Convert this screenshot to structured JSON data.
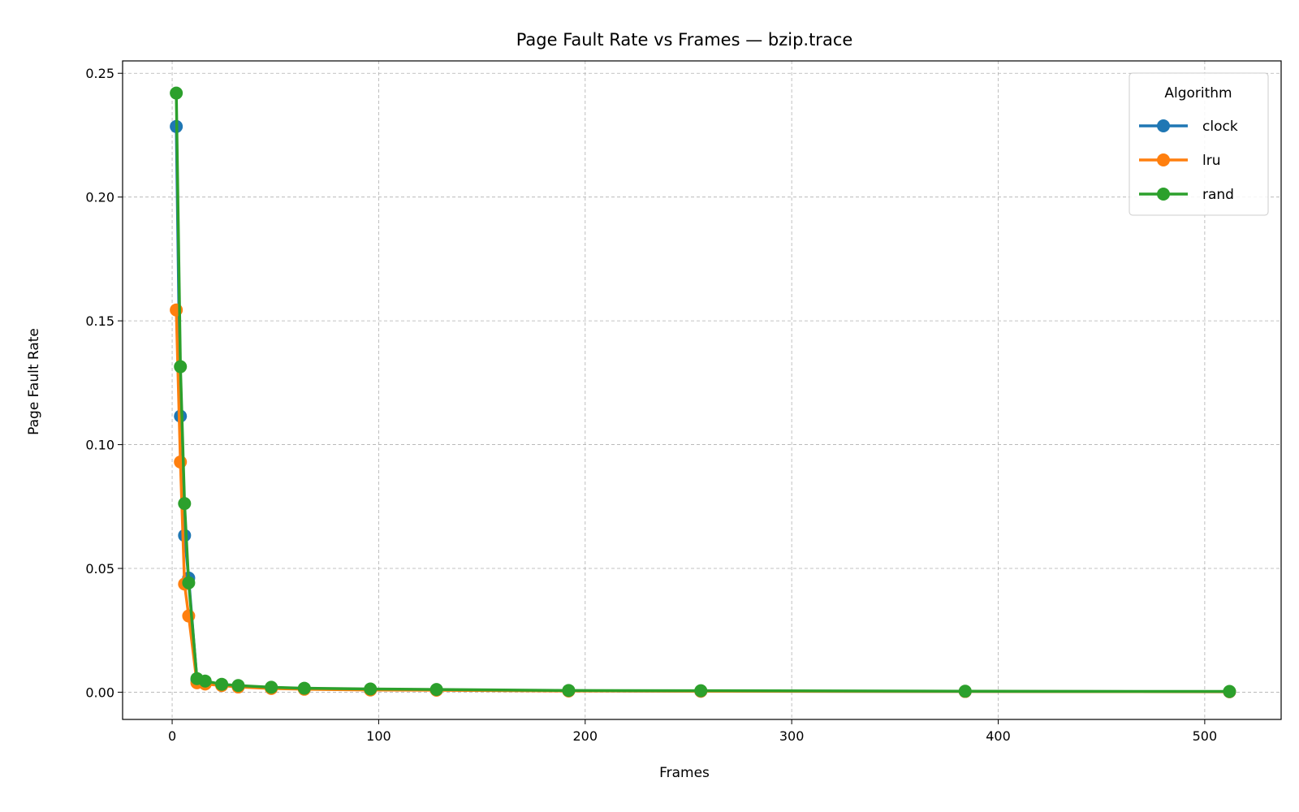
{
  "chart_data": {
    "type": "line",
    "title": "Page Fault Rate vs Frames — bzip.trace",
    "xlabel": "Frames",
    "ylabel": "Page Fault Rate",
    "xlim": [
      -24,
      537
    ],
    "ylim": [
      -0.011,
      0.255
    ],
    "xticks": [
      0,
      100,
      200,
      300,
      400,
      500
    ],
    "yticks": [
      0.0,
      0.05,
      0.1,
      0.15,
      0.2,
      0.25
    ],
    "ytick_labels": [
      "0.00",
      "0.05",
      "0.10",
      "0.15",
      "0.20",
      "0.25"
    ],
    "grid": true,
    "legend_title": "Algorithm",
    "legend_position": "top-right",
    "x": [
      2,
      4,
      6,
      8,
      12,
      16,
      24,
      32,
      48,
      64,
      96,
      128,
      192,
      256,
      384,
      512
    ],
    "series": [
      {
        "name": "clock",
        "color": "#1f77b4",
        "values": [
          0.2285,
          0.1115,
          0.0633,
          0.0461,
          0.0049,
          0.004,
          0.003,
          0.0023,
          0.0017,
          0.0014,
          0.0011,
          0.0009,
          0.0006,
          0.0004,
          0.0003,
          0.0002
        ]
      },
      {
        "name": "lru",
        "color": "#ff7f0e",
        "values": [
          0.1544,
          0.093,
          0.0437,
          0.0308,
          0.0038,
          0.0033,
          0.0027,
          0.0021,
          0.0015,
          0.0012,
          0.0009,
          0.0008,
          0.0005,
          0.0004,
          0.0003,
          0.0002
        ]
      },
      {
        "name": "rand",
        "color": "#2ca02c",
        "values": [
          0.242,
          0.1315,
          0.0762,
          0.0442,
          0.0055,
          0.0045,
          0.0032,
          0.0027,
          0.002,
          0.0016,
          0.0013,
          0.0011,
          0.0007,
          0.0006,
          0.0004,
          0.0003
        ]
      }
    ]
  }
}
